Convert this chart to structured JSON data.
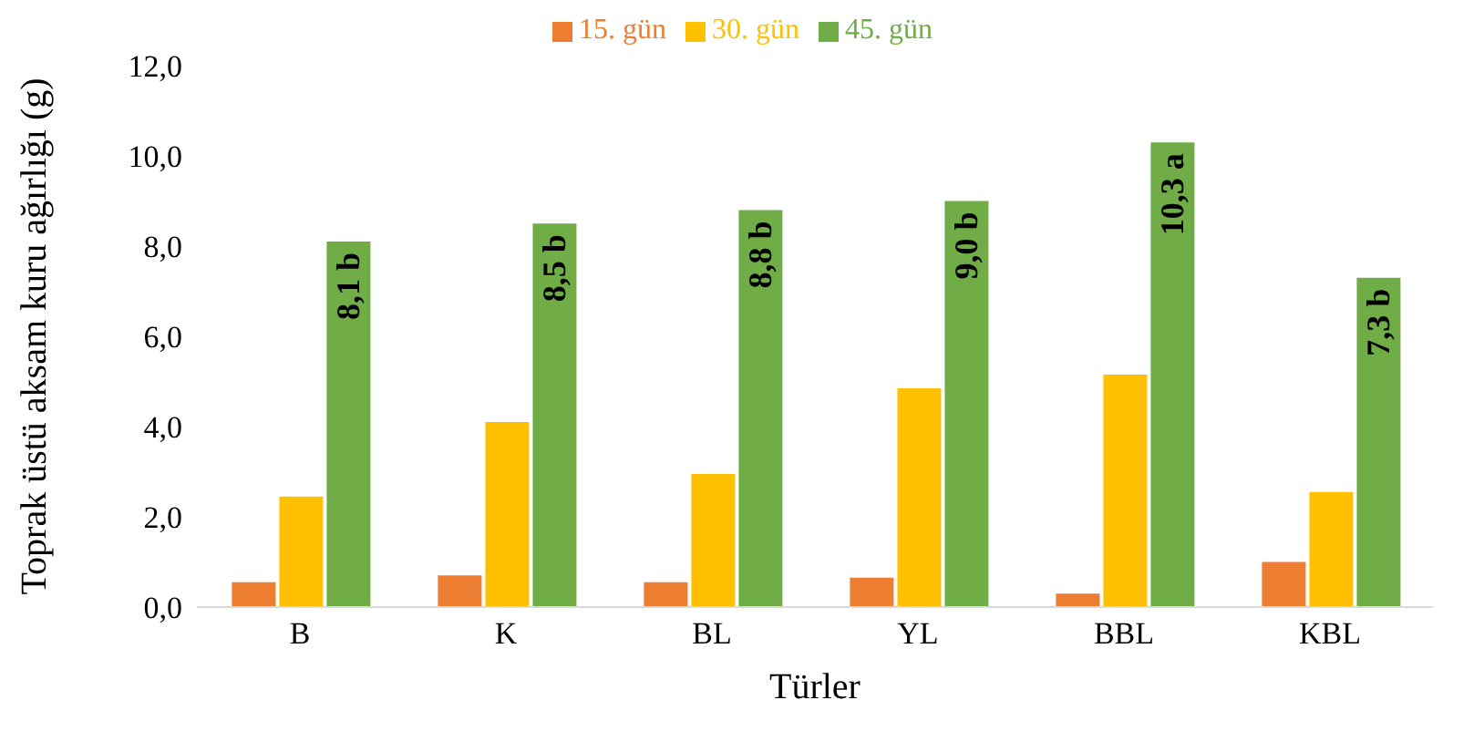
{
  "chart_data": {
    "type": "bar",
    "xlabel": "Türler",
    "ylabel": "Toprak üstü aksam kuru ağırlığı (g)",
    "categories": [
      "B",
      "K",
      "BL",
      "YL",
      "BBL",
      "KBL"
    ],
    "series": [
      {
        "name": "15. gün",
        "color": "#ed7d31",
        "values": [
          0.55,
          0.7,
          0.55,
          0.65,
          0.3,
          1.0
        ]
      },
      {
        "name": "30. gün",
        "color": "#ffc000",
        "values": [
          2.45,
          4.1,
          2.95,
          4.85,
          5.15,
          2.55
        ]
      },
      {
        "name": "45. gün",
        "color": "#70ad47",
        "values": [
          8.1,
          8.5,
          8.8,
          9.0,
          10.3,
          7.3
        ],
        "value_labels": [
          "8,1 b",
          "8,5 b",
          "8,8 b",
          "9,0 b",
          "10,3 a",
          "7,3 b"
        ]
      }
    ],
    "ylim": [
      0,
      12
    ],
    "yticks": [
      {
        "value": 0,
        "label": "0,0"
      },
      {
        "value": 2,
        "label": "2,0"
      },
      {
        "value": 4,
        "label": "4,0"
      },
      {
        "value": 6,
        "label": "6,0"
      },
      {
        "value": 8,
        "label": "8,0"
      },
      {
        "value": 10,
        "label": "10,0"
      },
      {
        "value": 12,
        "label": "12,0"
      }
    ],
    "grid": false,
    "legend": "top"
  }
}
